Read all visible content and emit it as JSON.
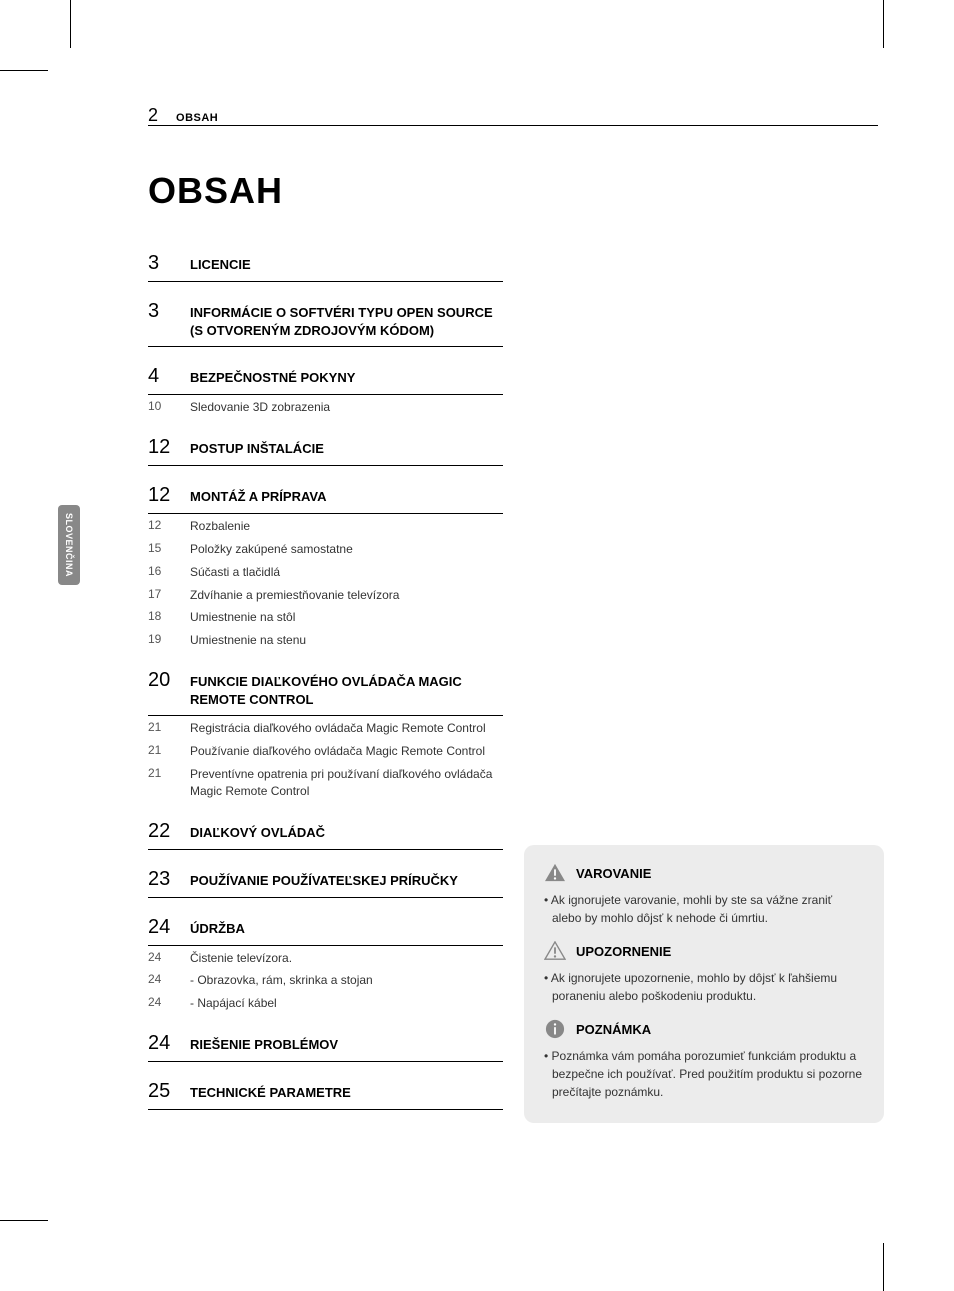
{
  "header": {
    "page_number": "2",
    "label": "OBSAH"
  },
  "main_title": "OBSAH",
  "side_tab": "SLOVENČINA",
  "toc": [
    {
      "page": "3",
      "title": "LICENCIE",
      "items": []
    },
    {
      "page": "3",
      "title": "INFORMÁCIE O SOFTVÉRI TYPU OPEN SOURCE (S OTVORENÝM ZDROJOVÝM KÓDOM)",
      "items": []
    },
    {
      "page": "4",
      "title": "BEZPEČNOSTNÉ POKYNY",
      "items": [
        {
          "page": "10",
          "title": "Sledovanie 3D zobrazenia"
        }
      ]
    },
    {
      "page": "12",
      "title": "POSTUP INŠTALÁCIE",
      "items": []
    },
    {
      "page": "12",
      "title": "MONTÁŽ A PRÍPRAVA",
      "items": [
        {
          "page": "12",
          "title": "Rozbalenie"
        },
        {
          "page": "15",
          "title": "Položky zakúpené samostatne"
        },
        {
          "page": "16",
          "title": "Súčasti a tlačidlá"
        },
        {
          "page": "17",
          "title": "Zdvíhanie a premiestňovanie televízora"
        },
        {
          "page": "18",
          "title": "Umiestnenie na stôl"
        },
        {
          "page": "19",
          "title": "Umiestnenie na stenu"
        }
      ]
    },
    {
      "page": "20",
      "title": "FUNKCIE DIAĽKOVÉHO OVLÁDAČA MAGIC REMOTE CONTROL",
      "items": [
        {
          "page": "21",
          "title": "Registrácia diaľkového ovládača Magic Remote Control"
        },
        {
          "page": "21",
          "title": "Používanie diaľkového ovládača Magic Remote Control"
        },
        {
          "page": "21",
          "title": "Preventívne opatrenia pri používaní diaľkového ovládača Magic Remote Control"
        }
      ]
    },
    {
      "page": "22",
      "title": "DIAĽKOVÝ OVLÁDAČ",
      "items": []
    },
    {
      "page": "23",
      "title": "POUŽÍVANIE POUŽÍVATEĽSKEJ PRÍRUČKY",
      "items": []
    },
    {
      "page": "24",
      "title": "ÚDRŽBA",
      "items": [
        {
          "page": "24",
          "title": "Čistenie televízora."
        },
        {
          "page": "24",
          "title": " - Obrazovka, rám, skrinka a stojan"
        },
        {
          "page": "24",
          "title": " - Napájací kábel"
        }
      ]
    },
    {
      "page": "24",
      "title": "RIEŠENIE PROBLÉMOV",
      "items": []
    },
    {
      "page": "25",
      "title": "TECHNICKÉ PARAMETRE",
      "items": []
    }
  ],
  "info_panel": {
    "warning": {
      "title": "VAROVANIE",
      "text": "Ak ignorujete varovanie, mohli by ste sa vážne zraniť alebo by mohlo dôjsť k nehode či úmrtiu.",
      "icon_fill": "#888888",
      "icon_stroke": "#888888"
    },
    "caution": {
      "title": "UPOZORNENIE",
      "text": "Ak ignorujete upozornenie, mohlo by dôjsť k ľahšiemu poraneniu alebo poškodeniu produktu.",
      "icon_fill": "none",
      "icon_stroke": "#888888"
    },
    "note": {
      "title": "POZNÁMKA",
      "text": "Poznámka vám pomáha porozumieť funkciám produktu a bezpečne ich používať. Pred použitím produktu si pozorne prečítajte poznámku.",
      "icon_fill": "#888888"
    }
  },
  "colors": {
    "background": "#ffffff",
    "text": "#000000",
    "side_tab_bg": "#888888",
    "side_tab_text": "#ffffff",
    "panel_bg": "#ececec",
    "rule": "#000000"
  }
}
